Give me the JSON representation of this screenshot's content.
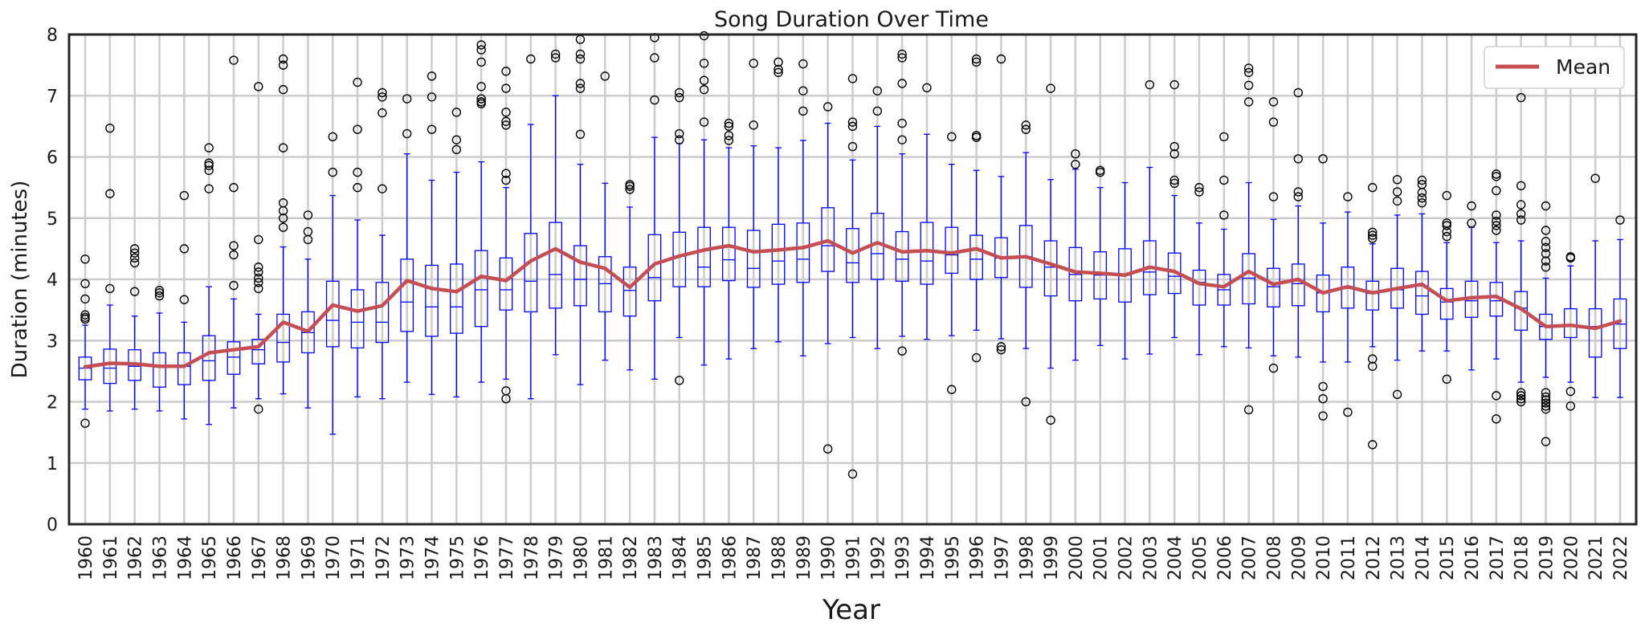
{
  "chart_data": {
    "type": "box",
    "title": "Song Duration Over Time",
    "xlabel": "Year",
    "ylabel": "Duration (minutes)",
    "ylim": [
      0,
      8
    ],
    "yticks": [
      0,
      1,
      2,
      3,
      4,
      5,
      6,
      7,
      8
    ],
    "grid": true,
    "legend": {
      "position": "top-right",
      "entries": [
        "Mean"
      ]
    },
    "colors": {
      "box": "#0000ff",
      "mean_line": "#c44e52",
      "grid": "#cccccc",
      "outlier": "#000000"
    },
    "categories": [
      "1960",
      "1961",
      "1962",
      "1963",
      "1964",
      "1965",
      "1966",
      "1967",
      "1968",
      "1969",
      "1970",
      "1971",
      "1972",
      "1973",
      "1974",
      "1975",
      "1976",
      "1977",
      "1978",
      "1979",
      "1980",
      "1981",
      "1982",
      "1983",
      "1984",
      "1985",
      "1986",
      "1987",
      "1988",
      "1989",
      "1990",
      "1991",
      "1992",
      "1993",
      "1994",
      "1995",
      "1996",
      "1997",
      "1998",
      "1999",
      "2000",
      "2001",
      "2002",
      "2003",
      "2004",
      "2005",
      "2006",
      "2007",
      "2008",
      "2009",
      "2010",
      "2011",
      "2012",
      "2013",
      "2014",
      "2015",
      "2016",
      "2017",
      "2018",
      "2019",
      "2020",
      "2021",
      "2022"
    ],
    "boxes": [
      {
        "min": 1.88,
        "q1": 2.36,
        "median": 2.55,
        "q3": 2.73,
        "max": 3.25,
        "outliers": [
          1.65,
          3.35,
          3.38,
          3.42,
          3.68,
          3.93,
          4.33
        ]
      },
      {
        "min": 1.85,
        "q1": 2.3,
        "median": 2.55,
        "q3": 2.86,
        "max": 3.58,
        "outliers": [
          3.85,
          5.4,
          6.47
        ]
      },
      {
        "min": 1.88,
        "q1": 2.35,
        "median": 2.58,
        "q3": 2.85,
        "max": 3.4,
        "outliers": [
          3.8,
          4.27,
          4.35,
          4.43,
          4.5
        ]
      },
      {
        "min": 1.85,
        "q1": 2.24,
        "median": 2.57,
        "q3": 2.8,
        "max": 3.45,
        "outliers": [
          3.73,
          3.78,
          3.82
        ]
      },
      {
        "min": 1.72,
        "q1": 2.28,
        "median": 2.58,
        "q3": 2.8,
        "max": 3.3,
        "outliers": [
          3.67,
          4.5,
          5.37
        ]
      },
      {
        "min": 1.63,
        "q1": 2.35,
        "median": 2.67,
        "q3": 3.08,
        "max": 3.88,
        "outliers": [
          5.48,
          5.78,
          5.86,
          5.9,
          6.15
        ]
      },
      {
        "min": 1.9,
        "q1": 2.45,
        "median": 2.73,
        "q3": 2.98,
        "max": 3.68,
        "outliers": [
          3.9,
          4.4,
          4.55,
          5.5,
          7.58
        ]
      },
      {
        "min": 2.05,
        "q1": 2.62,
        "median": 2.85,
        "q3": 3.02,
        "max": 3.43,
        "outliers": [
          1.88,
          3.85,
          3.95,
          4.02,
          4.12,
          4.2,
          4.65,
          7.15
        ]
      },
      {
        "min": 2.13,
        "q1": 2.65,
        "median": 2.97,
        "q3": 3.43,
        "max": 4.53,
        "outliers": [
          4.85,
          5.0,
          5.12,
          5.25,
          6.15,
          7.1,
          7.5,
          7.6
        ]
      },
      {
        "min": 1.9,
        "q1": 2.8,
        "median": 3.13,
        "q3": 3.47,
        "max": 4.33,
        "outliers": [
          4.65,
          4.78,
          5.05
        ]
      },
      {
        "min": 1.47,
        "q1": 2.9,
        "median": 3.33,
        "q3": 3.97,
        "max": 5.37,
        "outliers": [
          5.75,
          6.33
        ]
      },
      {
        "min": 2.08,
        "q1": 2.88,
        "median": 3.3,
        "q3": 3.83,
        "max": 4.97,
        "outliers": [
          5.5,
          5.75,
          6.45,
          7.22
        ]
      },
      {
        "min": 2.05,
        "q1": 2.97,
        "median": 3.3,
        "q3": 3.95,
        "max": 4.72,
        "outliers": [
          5.48,
          6.72,
          6.98,
          7.05
        ]
      },
      {
        "min": 2.32,
        "q1": 3.15,
        "median": 3.63,
        "q3": 4.33,
        "max": 6.05,
        "outliers": [
          6.38,
          6.95
        ]
      },
      {
        "min": 2.12,
        "q1": 3.07,
        "median": 3.55,
        "q3": 4.23,
        "max": 5.62,
        "outliers": [
          6.45,
          6.98,
          7.32
        ]
      },
      {
        "min": 2.08,
        "q1": 3.12,
        "median": 3.55,
        "q3": 4.25,
        "max": 5.75,
        "outliers": [
          6.12,
          6.28,
          6.73
        ]
      },
      {
        "min": 2.32,
        "q1": 3.23,
        "median": 3.83,
        "q3": 4.47,
        "max": 5.92,
        "outliers": [
          6.87,
          6.9,
          6.95,
          7.15,
          7.55,
          7.75,
          7.83
        ]
      },
      {
        "min": 2.37,
        "q1": 3.5,
        "median": 3.83,
        "q3": 4.35,
        "max": 5.5,
        "outliers": [
          2.05,
          2.18,
          5.62,
          5.73,
          6.52,
          6.58,
          6.73,
          7.12,
          7.4
        ]
      },
      {
        "min": 2.05,
        "q1": 3.47,
        "median": 3.97,
        "q3": 4.75,
        "max": 6.53,
        "outliers": [
          7.6
        ]
      },
      {
        "min": 2.77,
        "q1": 3.53,
        "median": 4.08,
        "q3": 4.93,
        "max": 7.0,
        "outliers": [
          7.62,
          7.68
        ]
      },
      {
        "min": 2.28,
        "q1": 3.57,
        "median": 4.0,
        "q3": 4.55,
        "max": 5.88,
        "outliers": [
          6.37,
          7.12,
          7.2,
          7.6,
          7.68,
          7.92
        ]
      },
      {
        "min": 2.68,
        "q1": 3.47,
        "median": 3.93,
        "q3": 4.37,
        "max": 5.57,
        "outliers": [
          7.32
        ]
      },
      {
        "min": 2.52,
        "q1": 3.4,
        "median": 3.82,
        "q3": 4.2,
        "max": 5.18,
        "outliers": [
          5.47,
          5.52,
          5.55
        ]
      },
      {
        "min": 2.37,
        "q1": 3.65,
        "median": 4.03,
        "q3": 4.73,
        "max": 6.32,
        "outliers": [
          6.93,
          7.62,
          7.95
        ]
      },
      {
        "min": 3.05,
        "q1": 3.88,
        "median": 4.38,
        "q3": 4.77,
        "max": 6.22,
        "outliers": [
          2.35,
          6.28,
          6.38,
          6.97,
          7.05
        ]
      },
      {
        "min": 2.6,
        "q1": 3.88,
        "median": 4.2,
        "q3": 4.85,
        "max": 6.28,
        "outliers": [
          6.57,
          7.1,
          7.25,
          7.53,
          7.98
        ]
      },
      {
        "min": 2.7,
        "q1": 3.98,
        "median": 4.32,
        "q3": 4.85,
        "max": 6.15,
        "outliers": [
          6.27,
          6.35,
          6.5,
          6.55
        ]
      },
      {
        "min": 2.87,
        "q1": 3.87,
        "median": 4.18,
        "q3": 4.8,
        "max": 6.18,
        "outliers": [
          6.52,
          7.53
        ]
      },
      {
        "min": 2.98,
        "q1": 3.92,
        "median": 4.3,
        "q3": 4.9,
        "max": 6.15,
        "outliers": [
          7.38,
          7.43,
          7.55
        ]
      },
      {
        "min": 2.75,
        "q1": 3.95,
        "median": 4.33,
        "q3": 4.92,
        "max": 6.27,
        "outliers": [
          6.75,
          7.08,
          7.52
        ]
      },
      {
        "min": 2.95,
        "q1": 4.13,
        "median": 4.55,
        "q3": 5.17,
        "max": 6.55,
        "outliers": [
          1.23,
          6.82
        ]
      },
      {
        "min": 3.05,
        "q1": 3.95,
        "median": 4.27,
        "q3": 4.83,
        "max": 5.95,
        "outliers": [
          0.82,
          6.17,
          6.5,
          6.57,
          7.28
        ]
      },
      {
        "min": 2.87,
        "q1": 4.0,
        "median": 4.42,
        "q3": 5.08,
        "max": 6.5,
        "outliers": [
          6.75,
          7.08
        ]
      },
      {
        "min": 3.07,
        "q1": 3.97,
        "median": 4.33,
        "q3": 4.78,
        "max": 6.05,
        "outliers": [
          2.83,
          6.28,
          6.55,
          7.2,
          7.62,
          7.68
        ]
      },
      {
        "min": 3.02,
        "q1": 3.92,
        "median": 4.3,
        "q3": 4.93,
        "max": 6.37,
        "outliers": [
          7.13
        ]
      },
      {
        "min": 3.08,
        "q1": 4.1,
        "median": 4.4,
        "q3": 4.85,
        "max": 5.88,
        "outliers": [
          2.2,
          6.33
        ]
      },
      {
        "min": 3.17,
        "q1": 4.0,
        "median": 4.33,
        "q3": 4.72,
        "max": 5.78,
        "outliers": [
          2.72,
          6.32,
          6.35,
          7.55,
          7.6
        ]
      },
      {
        "min": 3.03,
        "q1": 4.03,
        "median": 4.35,
        "q3": 4.68,
        "max": 5.68,
        "outliers": [
          2.85,
          2.9,
          7.6
        ]
      },
      {
        "min": 2.87,
        "q1": 3.87,
        "median": 4.37,
        "q3": 4.88,
        "max": 6.07,
        "outliers": [
          2.0,
          6.45,
          6.52
        ]
      },
      {
        "min": 2.55,
        "q1": 3.73,
        "median": 4.2,
        "q3": 4.63,
        "max": 5.63,
        "outliers": [
          1.7,
          7.12
        ]
      },
      {
        "min": 2.68,
        "q1": 3.65,
        "median": 4.08,
        "q3": 4.52,
        "max": 5.8,
        "outliers": [
          5.88,
          6.05
        ]
      },
      {
        "min": 2.92,
        "q1": 3.68,
        "median": 4.07,
        "q3": 4.45,
        "max": 5.5,
        "outliers": [
          5.75,
          5.78
        ]
      },
      {
        "min": 2.7,
        "q1": 3.63,
        "median": 4.07,
        "q3": 4.5,
        "max": 5.58,
        "outliers": []
      },
      {
        "min": 2.78,
        "q1": 3.75,
        "median": 4.12,
        "q3": 4.63,
        "max": 5.83,
        "outliers": [
          7.18
        ]
      },
      {
        "min": 3.05,
        "q1": 3.77,
        "median": 4.05,
        "q3": 4.43,
        "max": 5.37,
        "outliers": [
          5.57,
          5.62,
          6.05,
          6.17,
          7.18
        ]
      },
      {
        "min": 2.77,
        "q1": 3.58,
        "median": 3.95,
        "q3": 4.15,
        "max": 4.92,
        "outliers": [
          5.43,
          5.5
        ]
      },
      {
        "min": 2.9,
        "q1": 3.58,
        "median": 3.83,
        "q3": 4.08,
        "max": 4.82,
        "outliers": [
          5.05,
          5.62,
          6.33
        ]
      },
      {
        "min": 2.88,
        "q1": 3.6,
        "median": 4.02,
        "q3": 4.42,
        "max": 5.58,
        "outliers": [
          1.87,
          6.9,
          7.17,
          7.38,
          7.45
        ]
      },
      {
        "min": 2.75,
        "q1": 3.55,
        "median": 3.88,
        "q3": 4.18,
        "max": 4.98,
        "outliers": [
          2.55,
          5.35,
          6.57,
          6.9
        ]
      },
      {
        "min": 2.73,
        "q1": 3.57,
        "median": 3.93,
        "q3": 4.25,
        "max": 5.2,
        "outliers": [
          5.35,
          5.43,
          5.97,
          7.05
        ]
      },
      {
        "min": 2.65,
        "q1": 3.47,
        "median": 3.78,
        "q3": 4.07,
        "max": 4.92,
        "outliers": [
          1.77,
          2.05,
          2.25,
          5.97
        ]
      },
      {
        "min": 2.65,
        "q1": 3.53,
        "median": 3.85,
        "q3": 4.2,
        "max": 5.1,
        "outliers": [
          1.83,
          5.35
        ]
      },
      {
        "min": 2.9,
        "q1": 3.5,
        "median": 3.77,
        "q3": 3.97,
        "max": 4.58,
        "outliers": [
          1.3,
          2.58,
          2.7,
          4.67,
          4.72,
          4.77,
          5.5
        ]
      },
      {
        "min": 2.68,
        "q1": 3.53,
        "median": 3.83,
        "q3": 4.18,
        "max": 5.05,
        "outliers": [
          2.12,
          5.28,
          5.43,
          5.63
        ]
      },
      {
        "min": 2.83,
        "q1": 3.43,
        "median": 3.73,
        "q3": 4.13,
        "max": 5.07,
        "outliers": [
          5.25,
          5.33,
          5.42,
          5.55,
          5.62
        ]
      },
      {
        "min": 2.83,
        "q1": 3.35,
        "median": 3.63,
        "q3": 3.85,
        "max": 4.6,
        "outliers": [
          2.37,
          4.7,
          4.78,
          4.88,
          4.92,
          5.37
        ]
      },
      {
        "min": 2.52,
        "q1": 3.38,
        "median": 3.65,
        "q3": 3.97,
        "max": 4.85,
        "outliers": [
          4.92,
          5.2
        ]
      },
      {
        "min": 2.7,
        "q1": 3.4,
        "median": 3.65,
        "q3": 3.95,
        "max": 4.6,
        "outliers": [
          1.72,
          2.1,
          4.8,
          4.88,
          4.95,
          5.05,
          5.45,
          5.68,
          5.72
        ]
      },
      {
        "min": 2.32,
        "q1": 3.17,
        "median": 3.53,
        "q3": 3.8,
        "max": 4.63,
        "outliers": [
          2.0,
          2.05,
          2.1,
          2.15,
          4.97,
          5.07,
          5.22,
          5.53,
          6.97
        ]
      },
      {
        "min": 2.4,
        "q1": 3.02,
        "median": 3.23,
        "q3": 3.43,
        "max": 4.02,
        "outliers": [
          1.35,
          1.88,
          1.93,
          1.98,
          2.03,
          2.08,
          2.15,
          4.2,
          4.3,
          4.42,
          4.52,
          4.62,
          4.8,
          5.2
        ]
      },
      {
        "min": 2.32,
        "q1": 3.05,
        "median": 3.25,
        "q3": 3.52,
        "max": 4.22,
        "outliers": [
          1.93,
          2.17,
          4.35,
          4.37
        ]
      },
      {
        "min": 2.07,
        "q1": 2.73,
        "median": 3.23,
        "q3": 3.52,
        "max": 4.63,
        "outliers": [
          5.65
        ]
      },
      {
        "min": 2.07,
        "q1": 2.87,
        "median": 3.27,
        "q3": 3.68,
        "max": 4.65,
        "outliers": [
          4.97
        ]
      }
    ],
    "series": [
      {
        "name": "Mean",
        "values": [
          2.57,
          2.63,
          2.62,
          2.58,
          2.58,
          2.8,
          2.85,
          2.9,
          3.3,
          3.15,
          3.58,
          3.48,
          3.57,
          3.98,
          3.85,
          3.8,
          4.05,
          3.98,
          4.3,
          4.5,
          4.28,
          4.18,
          3.87,
          4.25,
          4.38,
          4.48,
          4.55,
          4.45,
          4.48,
          4.52,
          4.63,
          4.43,
          4.6,
          4.45,
          4.47,
          4.43,
          4.5,
          4.35,
          4.37,
          4.25,
          4.12,
          4.1,
          4.07,
          4.2,
          4.13,
          3.93,
          3.88,
          4.13,
          3.92,
          4.0,
          3.78,
          3.88,
          3.78,
          3.85,
          3.92,
          3.65,
          3.7,
          3.72,
          3.52,
          3.23,
          3.25,
          3.2,
          3.32
        ]
      }
    ]
  }
}
